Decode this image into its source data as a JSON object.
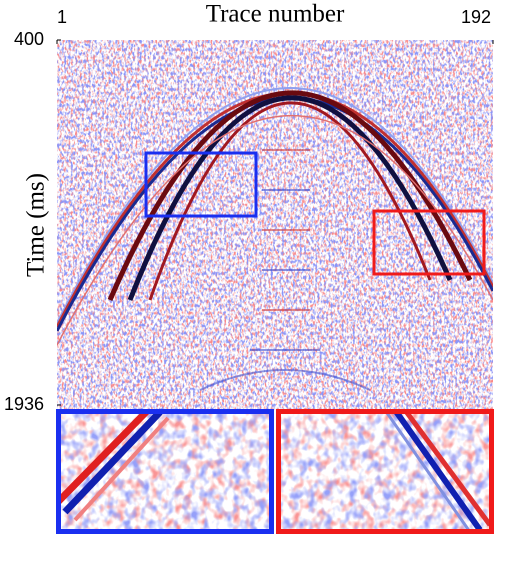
{
  "chart_data": {
    "type": "heatmap",
    "xlabel": "Trace number",
    "ylabel": "Time (ms)",
    "xlim": [
      1,
      192
    ],
    "ylim": [
      400,
      1936
    ],
    "xticks": [
      1,
      192
    ],
    "yticks": [
      400,
      1936
    ]
  }
}
